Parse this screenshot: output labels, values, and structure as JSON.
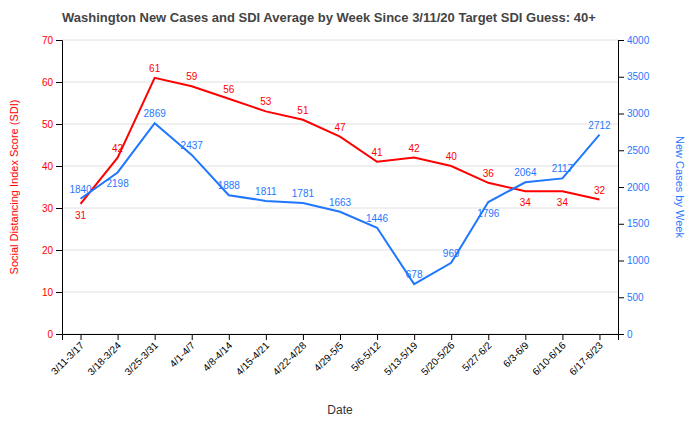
{
  "chart_data": {
    "type": "line",
    "title": "Washington New Cases and SDI Average by Week Since 3/11/20 Target SDI Guess: 40+",
    "x_label": "Date",
    "y_label": "Social Distancing Index Score (SDI)",
    "y2_label": "New Cases by Week",
    "categories": [
      "3/11-3/17",
      "3/18-3/24",
      "3/25-3/31",
      "4/1-4/7",
      "4/8-4/14",
      "4/15-4/21",
      "4/22-4/28",
      "4/29-5/5",
      "5/6-5/12",
      "5/13-5/19",
      "5/20-5/26",
      "5/27-6/2",
      "6/3-6/9",
      "6/10-6/16",
      "6/17-6/23"
    ],
    "series": [
      {
        "color": "#ff0000",
        "values": [
          31,
          42,
          61,
          59,
          56,
          53,
          51,
          47,
          41,
          42,
          40,
          36,
          34,
          34,
          32
        ]
      },
      {
        "color": "#1f77ff",
        "axis": "y2",
        "values": [
          1840,
          2198,
          2869,
          2437,
          1888,
          1811,
          1781,
          1663,
          1446,
          678,
          969,
          1796,
          2064,
          2117,
          2712
        ]
      }
    ],
    "ylim": [
      0,
      70
    ],
    "yticks": [
      0,
      10,
      20,
      30,
      40,
      50,
      60,
      70
    ],
    "y2lim": [
      0,
      4000
    ],
    "y2ticks": [
      0,
      500,
      1000,
      1500,
      2000,
      2500,
      3000,
      3500,
      4000
    ],
    "grid": true,
    "data_labels": true
  }
}
